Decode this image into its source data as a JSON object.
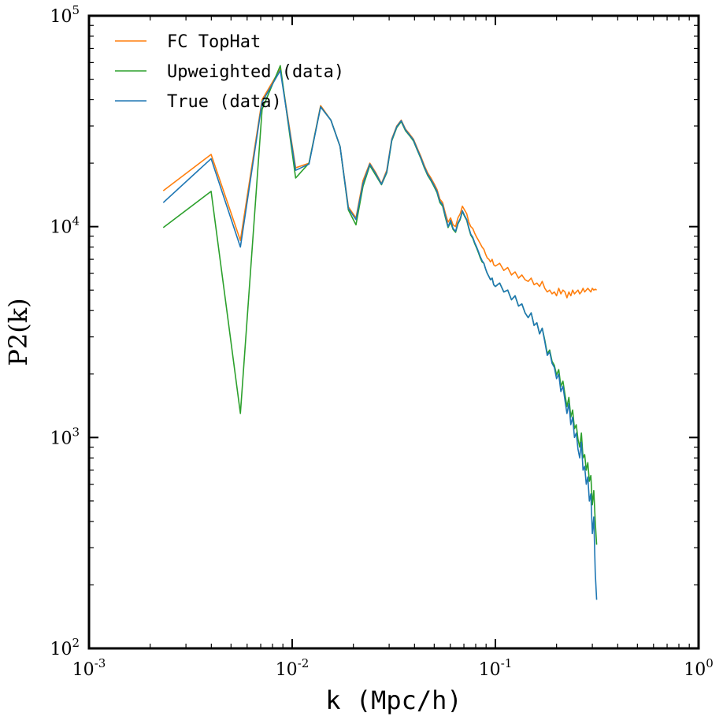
{
  "chart_data": {
    "type": "line",
    "title": "",
    "xlabel": "k (Mpc/h)",
    "ylabel": "P2(k)",
    "xscale": "log",
    "yscale": "log",
    "xlim": [
      0.001,
      1
    ],
    "ylim": [
      100,
      100000
    ],
    "x_ticks": [
      {
        "base": "10",
        "exp": "-3"
      },
      {
        "base": "10",
        "exp": "-2"
      },
      {
        "base": "10",
        "exp": "-1"
      },
      {
        "base": "10",
        "exp": "0"
      }
    ],
    "y_ticks": [
      {
        "base": "10",
        "exp": "2"
      },
      {
        "base": "10",
        "exp": "3"
      },
      {
        "base": "10",
        "exp": "4"
      },
      {
        "base": "10",
        "exp": "5"
      }
    ],
    "grid": false,
    "legend_position": "top-left",
    "series": [
      {
        "name": "FC TopHat",
        "color": "#ff7f0e",
        "x": [
          0.00232,
          0.00399,
          0.00556,
          0.00711,
          0.00874,
          0.0104,
          0.0121,
          0.0138,
          0.0155,
          0.0172,
          0.0189,
          0.0206,
          0.0223,
          0.0241,
          0.0258,
          0.0275,
          0.0292,
          0.0309,
          0.0327,
          0.0344,
          0.0361,
          0.0378,
          0.0395,
          0.0413,
          0.043,
          0.0447,
          0.0464,
          0.0482,
          0.0499,
          0.0516,
          0.0533,
          0.055,
          0.0568,
          0.0585,
          0.0602,
          0.0619,
          0.0637,
          0.0654,
          0.0671,
          0.0688,
          0.0705,
          0.0723,
          0.074,
          0.0757,
          0.0774,
          0.0791,
          0.0809,
          0.0826,
          0.0843,
          0.086,
          0.0878,
          0.0895,
          0.0912,
          0.0929,
          0.0946,
          0.0964,
          0.0981,
          0.1,
          0.105,
          0.11,
          0.115,
          0.12,
          0.125,
          0.13,
          0.135,
          0.14,
          0.145,
          0.15,
          0.155,
          0.16,
          0.165,
          0.17,
          0.175,
          0.18,
          0.185,
          0.19,
          0.195,
          0.2,
          0.205,
          0.21,
          0.215,
          0.22,
          0.225,
          0.23,
          0.235,
          0.24,
          0.245,
          0.25,
          0.255,
          0.26,
          0.265,
          0.27,
          0.275,
          0.28,
          0.285,
          0.29,
          0.295,
          0.3,
          0.305,
          0.31,
          0.315
        ],
        "values": [
          14800,
          22000,
          8600,
          40000,
          56000,
          19000,
          20000,
          37500,
          32000,
          24000,
          12400,
          11000,
          16500,
          20000,
          18000,
          16000,
          18500,
          26000,
          30000,
          32000,
          29000,
          27500,
          26000,
          23500,
          21500,
          19500,
          18000,
          17000,
          16000,
          15000,
          13500,
          13000,
          11500,
          10500,
          11000,
          10200,
          10000,
          11000,
          11500,
          12500,
          12000,
          11500,
          10500,
          10000,
          9800,
          9300,
          8900,
          8600,
          8300,
          8000,
          7800,
          7400,
          7100,
          7000,
          6800,
          7000,
          6600,
          6500,
          6700,
          6200,
          6400,
          5900,
          6100,
          5700,
          5900,
          5600,
          5500,
          5700,
          5300,
          5400,
          5200,
          5500,
          5100,
          4900,
          5000,
          4800,
          4900,
          4700,
          5100,
          4800,
          5000,
          4900,
          4600,
          4900,
          4700,
          5000,
          4800,
          4900,
          5000,
          4800,
          4900,
          5100,
          4900,
          5000,
          5100,
          5000,
          4900,
          5100,
          5000,
          5050,
          5000
        ]
      },
      {
        "name": "Upweighted (data)",
        "color": "#2ca02c",
        "x": [
          0.00232,
          0.00399,
          0.00556,
          0.00711,
          0.00874,
          0.0104,
          0.0121,
          0.0138,
          0.0155,
          0.0172,
          0.0189,
          0.0206,
          0.0223,
          0.0241,
          0.0258,
          0.0275,
          0.0292,
          0.0309,
          0.0327,
          0.0344,
          0.0361,
          0.0378,
          0.0395,
          0.0413,
          0.043,
          0.0447,
          0.0464,
          0.0482,
          0.0499,
          0.0516,
          0.0533,
          0.055,
          0.0568,
          0.0585,
          0.0602,
          0.0619,
          0.0637,
          0.0654,
          0.0671,
          0.0688,
          0.0705,
          0.0723,
          0.074,
          0.0757,
          0.0774,
          0.0791,
          0.0809,
          0.0826,
          0.0843,
          0.086,
          0.0878,
          0.0895,
          0.0912,
          0.0929,
          0.0946,
          0.0964,
          0.0981,
          0.1,
          0.105,
          0.11,
          0.115,
          0.12,
          0.125,
          0.13,
          0.135,
          0.14,
          0.145,
          0.15,
          0.155,
          0.16,
          0.165,
          0.17,
          0.175,
          0.18,
          0.185,
          0.19,
          0.195,
          0.2,
          0.205,
          0.21,
          0.215,
          0.22,
          0.225,
          0.23,
          0.235,
          0.24,
          0.245,
          0.25,
          0.255,
          0.26,
          0.265,
          0.27,
          0.275,
          0.28,
          0.285,
          0.29,
          0.295,
          0.3,
          0.305,
          0.31,
          0.315
        ],
        "values": [
          9900,
          14700,
          1300,
          36000,
          58000,
          17000,
          20000,
          37000,
          32000,
          24000,
          12000,
          10200,
          15500,
          19500,
          17500,
          15800,
          18000,
          25500,
          29500,
          31500,
          28500,
          27000,
          25500,
          23000,
          21000,
          19000,
          17500,
          16500,
          15500,
          14500,
          13000,
          12500,
          11000,
          9900,
          10500,
          9700,
          9400,
          10300,
          10800,
          11800,
          11200,
          10700,
          9800,
          9100,
          8800,
          8300,
          7900,
          7500,
          7100,
          6800,
          6700,
          6300,
          6000,
          5800,
          5600,
          5700,
          5300,
          5200,
          5400,
          4900,
          5000,
          4500,
          4700,
          4200,
          4300,
          3900,
          3700,
          3900,
          3400,
          3500,
          3100,
          3300,
          2900,
          2500,
          2600,
          2300,
          2200,
          1980,
          2100,
          1750,
          1850,
          1600,
          1400,
          1550,
          1250,
          1350,
          1100,
          1150,
          980,
          900,
          1050,
          800,
          830,
          700,
          760,
          620,
          660,
          480,
          560,
          400,
          310
        ]
      },
      {
        "name": "True (data)",
        "color": "#1f77b4",
        "x": [
          0.00232,
          0.00399,
          0.00556,
          0.00711,
          0.00874,
          0.0104,
          0.0121,
          0.0138,
          0.0155,
          0.0172,
          0.0189,
          0.0206,
          0.0223,
          0.0241,
          0.0258,
          0.0275,
          0.0292,
          0.0309,
          0.0327,
          0.0344,
          0.0361,
          0.0378,
          0.0395,
          0.0413,
          0.043,
          0.0447,
          0.0464,
          0.0482,
          0.0499,
          0.0516,
          0.0533,
          0.055,
          0.0568,
          0.0585,
          0.0602,
          0.0619,
          0.0637,
          0.0654,
          0.0671,
          0.0688,
          0.0705,
          0.0723,
          0.074,
          0.0757,
          0.0774,
          0.0791,
          0.0809,
          0.0826,
          0.0843,
          0.086,
          0.0878,
          0.0895,
          0.0912,
          0.0929,
          0.0946,
          0.0964,
          0.0981,
          0.1,
          0.105,
          0.11,
          0.115,
          0.12,
          0.125,
          0.13,
          0.135,
          0.14,
          0.145,
          0.15,
          0.155,
          0.16,
          0.165,
          0.17,
          0.175,
          0.18,
          0.185,
          0.19,
          0.195,
          0.2,
          0.205,
          0.21,
          0.215,
          0.22,
          0.225,
          0.23,
          0.235,
          0.24,
          0.245,
          0.25,
          0.255,
          0.26,
          0.265,
          0.27,
          0.275,
          0.28,
          0.285,
          0.29,
          0.295,
          0.3,
          0.305,
          0.31,
          0.315
        ],
        "values": [
          13000,
          21000,
          8000,
          39000,
          55000,
          18500,
          19800,
          37000,
          32000,
          24000,
          12200,
          10800,
          16000,
          19800,
          17800,
          15900,
          18200,
          25800,
          29800,
          31800,
          28800,
          27200,
          25800,
          23200,
          21200,
          19200,
          17700,
          16700,
          15700,
          14700,
          13200,
          12700,
          11200,
          10000,
          10700,
          9800,
          9500,
          10400,
          10900,
          11900,
          11300,
          10800,
          9900,
          9200,
          8900,
          8400,
          8000,
          7600,
          7200,
          6900,
          6700,
          6300,
          6000,
          5800,
          5600,
          5700,
          5300,
          5200,
          5400,
          4900,
          5000,
          4500,
          4700,
          4200,
          4300,
          3900,
          3700,
          3900,
          3400,
          3500,
          3100,
          3300,
          2850,
          2450,
          2550,
          2250,
          2150,
          1900,
          2000,
          1650,
          1750,
          1500,
          1300,
          1450,
          1150,
          1250,
          1000,
          1050,
          880,
          800,
          950,
          700,
          730,
          600,
          650,
          500,
          540,
          350,
          420,
          230,
          170
        ]
      }
    ]
  }
}
